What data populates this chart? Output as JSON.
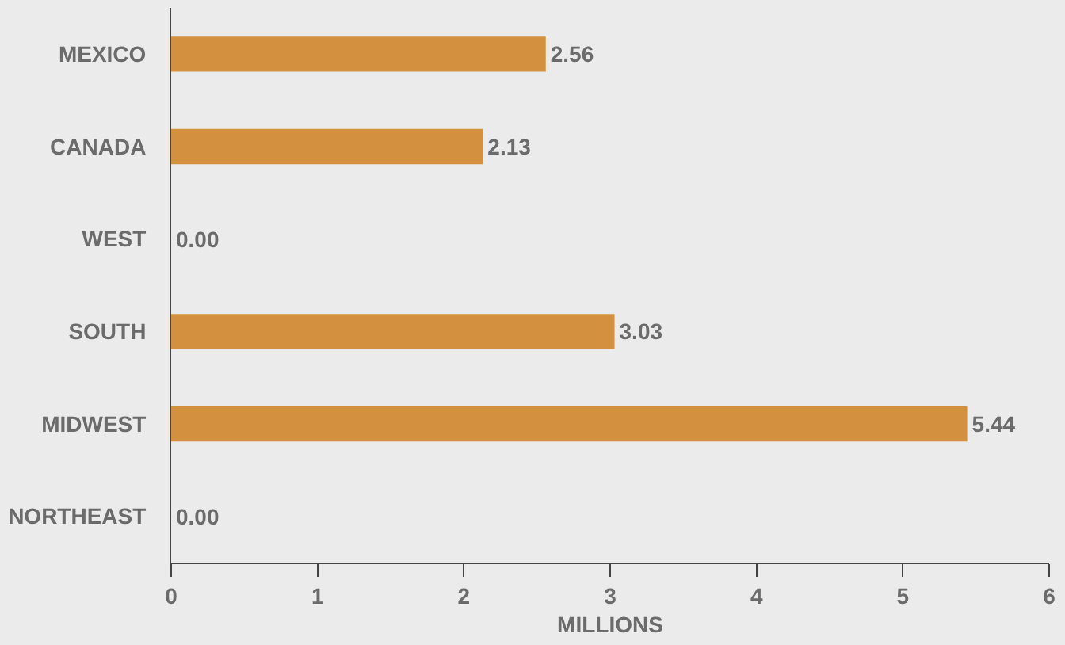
{
  "chart_data": {
    "type": "bar",
    "orientation": "horizontal",
    "xlabel": "MILLIONS",
    "categories": [
      "MEXICO",
      "CANADA",
      "WEST",
      "SOUTH",
      "MIDWEST",
      "NORTHEAST"
    ],
    "values": [
      2.56,
      2.13,
      0,
      3.03,
      5.44,
      0
    ],
    "value_labels": [
      "2.56",
      "2.13",
      "0.00",
      "3.03",
      "5.44",
      "0.00"
    ],
    "color": "#d3913f",
    "xlim": [
      0,
      6
    ],
    "xticks": [
      0,
      1,
      2,
      3,
      4,
      5,
      6
    ],
    "grid": false,
    "legend": false
  }
}
